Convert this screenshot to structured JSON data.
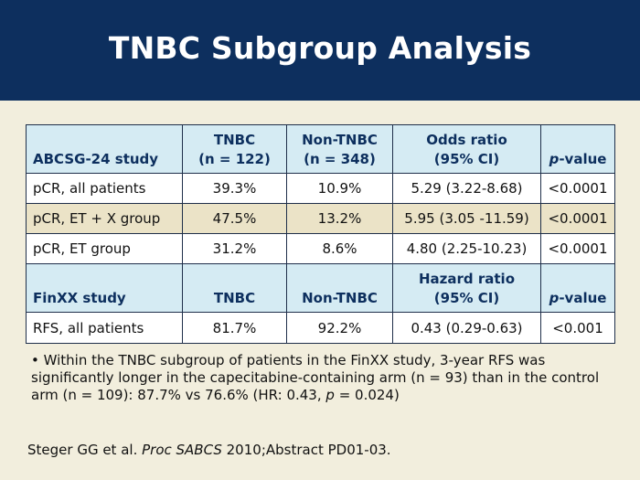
{
  "slide": {
    "title": "TNBC Subgroup Analysis"
  },
  "table": {
    "header1": {
      "study": "ABCSG-24 study",
      "tnbc_line1": "TNBC",
      "tnbc_line2": "(n = 122)",
      "nontnbc_line1": "Non-TNBC",
      "nontnbc_line2": "(n = 348)",
      "ratio_line1": "Odds ratio",
      "ratio_line2": "(95% CI)",
      "pvalue_p": "p",
      "pvalue_rest": "-value"
    },
    "rows1": [
      {
        "label": "pCR, all patients",
        "tnbc": "39.3%",
        "nontnbc": "10.9%",
        "ratio": "5.29 (3.22-8.68)",
        "p": "<0.0001"
      },
      {
        "label": "pCR, ET + X group",
        "tnbc": "47.5%",
        "nontnbc": "13.2%",
        "ratio": "5.95 (3.05 -11.59)",
        "p": "<0.0001"
      },
      {
        "label": "pCR, ET group",
        "tnbc": "31.2%",
        "nontnbc": "8.6%",
        "ratio": "4.80 (2.25-10.23)",
        "p": "<0.0001"
      }
    ],
    "header2": {
      "study": "FinXX study",
      "tnbc": "TNBC",
      "nontnbc": "Non-TNBC",
      "ratio_line1": "Hazard ratio",
      "ratio_line2": "(95% CI)",
      "pvalue_p": "p",
      "pvalue_rest": "-value"
    },
    "rows2": [
      {
        "label": "RFS, all patients",
        "tnbc": "81.7%",
        "nontnbc": "92.2%",
        "ratio": "0.43 (0.29-0.63)",
        "p": "<0.001"
      }
    ]
  },
  "note": {
    "bullet": "•",
    "text_before_p": " Within the TNBC subgroup of patients in the FinXX study, 3-year RFS was significantly longer in the capecitabine-containing arm (n = 93) than in the control arm (n = 109): 87.7% vs 76.6% (HR: 0.43, ",
    "p": "p",
    "text_after_p": " = 0.024)"
  },
  "citation": {
    "authors": "Steger GG et al. ",
    "journal": "Proc SABCS",
    "rest": " 2010;Abstract PD01-03."
  },
  "colors": {
    "header_bg": "#0d2f5e",
    "slide_bg": "#f2eedd",
    "table_header_bg": "#d5ebf3",
    "alt_row_bg": "#ebe3c7"
  }
}
